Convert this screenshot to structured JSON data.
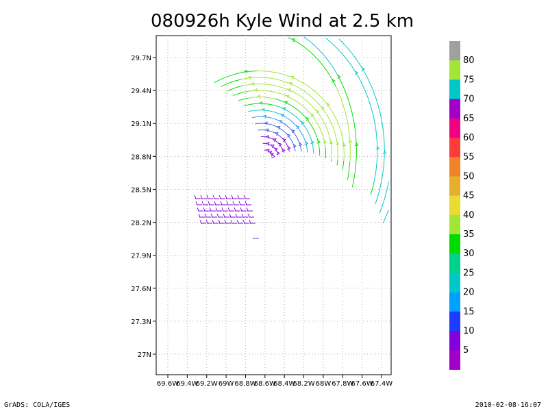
{
  "title": "080926h Kyle Wind at 2.5 km",
  "footer": {
    "left": "GrADS: COLA/IGES",
    "right": "2010-02-08-16:07"
  },
  "map": {
    "lon_labels": [
      "69.6W",
      "69.4W",
      "69.2W",
      "69W",
      "68.8W",
      "68.6W",
      "68.4W",
      "68.2W",
      "68W",
      "67.8W",
      "67.6W",
      "67.4W"
    ],
    "lon_values": [
      -69.6,
      -69.4,
      -69.2,
      -69.0,
      -68.8,
      -68.6,
      -68.4,
      -68.2,
      -68.0,
      -67.8,
      -67.6,
      -67.4
    ],
    "lat_labels": [
      "29.7N",
      "29.4N",
      "29.1N",
      "28.8N",
      "28.5N",
      "28.2N",
      "27.9N",
      "27.6N",
      "27.3N",
      "27N"
    ],
    "lat_values": [
      29.7,
      29.4,
      29.1,
      28.8,
      28.5,
      28.2,
      27.9,
      27.6,
      27.3,
      27.0
    ],
    "center": {
      "lon": -68.6,
      "lat": 28.77
    },
    "grid": true
  },
  "colorbar": {
    "labels": [
      "80",
      "75",
      "70",
      "65",
      "60",
      "55",
      "50",
      "45",
      "40",
      "35",
      "30",
      "25",
      "20",
      "15",
      "10",
      "5"
    ],
    "colors": [
      "#a0a0a0",
      "#a0e632",
      "#00c8c8",
      "#a000c8",
      "#f00082",
      "#fa3c3c",
      "#f08228",
      "#e6af2d",
      "#e6dc32",
      "#a0e632",
      "#00dc00",
      "#00d28c",
      "#00c8c8",
      "#00a0ff",
      "#1e3cff",
      "#8200dc",
      "#a000c8"
    ]
  }
}
